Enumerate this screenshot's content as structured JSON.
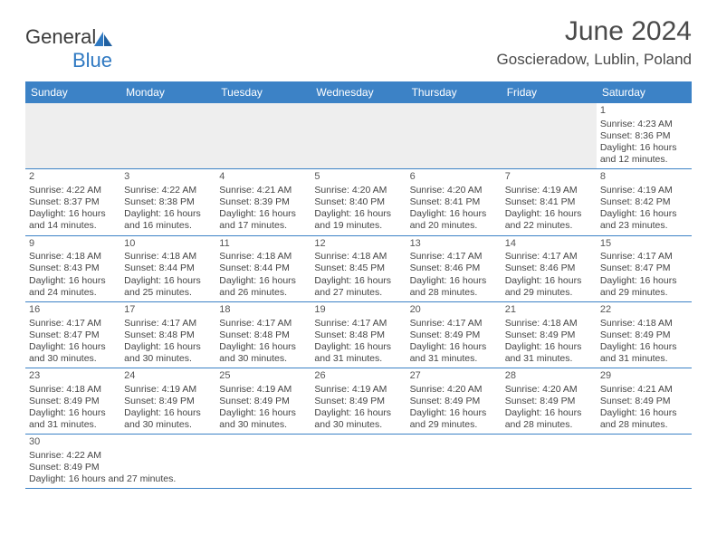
{
  "header": {
    "logo_text_1": "General",
    "logo_text_2": "Blue",
    "month_title": "June 2024",
    "location": "Goscieradow, Lublin, Poland"
  },
  "style": {
    "header_bg": "#3c82c6",
    "header_text": "#ffffff",
    "divider": "#3c82c6",
    "body_text": "#444444",
    "brand_gray": "#3b3b3b",
    "brand_blue": "#2f79c2",
    "empty_bg": "#eeeeee",
    "page_bg": "#ffffff",
    "title_fontsize": 30,
    "location_fontsize": 17,
    "dayheader_fontsize": 12,
    "cell_fontsize": 10.5
  },
  "calendar": {
    "day_headers": [
      "Sunday",
      "Monday",
      "Tuesday",
      "Wednesday",
      "Thursday",
      "Friday",
      "Saturday"
    ],
    "leading_blanks": 6,
    "days": [
      {
        "n": "1",
        "sunrise": "4:23 AM",
        "sunset": "8:36 PM",
        "daylight": "16 hours and 12 minutes."
      },
      {
        "n": "2",
        "sunrise": "4:22 AM",
        "sunset": "8:37 PM",
        "daylight": "16 hours and 14 minutes."
      },
      {
        "n": "3",
        "sunrise": "4:22 AM",
        "sunset": "8:38 PM",
        "daylight": "16 hours and 16 minutes."
      },
      {
        "n": "4",
        "sunrise": "4:21 AM",
        "sunset": "8:39 PM",
        "daylight": "16 hours and 17 minutes."
      },
      {
        "n": "5",
        "sunrise": "4:20 AM",
        "sunset": "8:40 PM",
        "daylight": "16 hours and 19 minutes."
      },
      {
        "n": "6",
        "sunrise": "4:20 AM",
        "sunset": "8:41 PM",
        "daylight": "16 hours and 20 minutes."
      },
      {
        "n": "7",
        "sunrise": "4:19 AM",
        "sunset": "8:41 PM",
        "daylight": "16 hours and 22 minutes."
      },
      {
        "n": "8",
        "sunrise": "4:19 AM",
        "sunset": "8:42 PM",
        "daylight": "16 hours and 23 minutes."
      },
      {
        "n": "9",
        "sunrise": "4:18 AM",
        "sunset": "8:43 PM",
        "daylight": "16 hours and 24 minutes."
      },
      {
        "n": "10",
        "sunrise": "4:18 AM",
        "sunset": "8:44 PM",
        "daylight": "16 hours and 25 minutes."
      },
      {
        "n": "11",
        "sunrise": "4:18 AM",
        "sunset": "8:44 PM",
        "daylight": "16 hours and 26 minutes."
      },
      {
        "n": "12",
        "sunrise": "4:18 AM",
        "sunset": "8:45 PM",
        "daylight": "16 hours and 27 minutes."
      },
      {
        "n": "13",
        "sunrise": "4:17 AM",
        "sunset": "8:46 PM",
        "daylight": "16 hours and 28 minutes."
      },
      {
        "n": "14",
        "sunrise": "4:17 AM",
        "sunset": "8:46 PM",
        "daylight": "16 hours and 29 minutes."
      },
      {
        "n": "15",
        "sunrise": "4:17 AM",
        "sunset": "8:47 PM",
        "daylight": "16 hours and 29 minutes."
      },
      {
        "n": "16",
        "sunrise": "4:17 AM",
        "sunset": "8:47 PM",
        "daylight": "16 hours and 30 minutes."
      },
      {
        "n": "17",
        "sunrise": "4:17 AM",
        "sunset": "8:48 PM",
        "daylight": "16 hours and 30 minutes."
      },
      {
        "n": "18",
        "sunrise": "4:17 AM",
        "sunset": "8:48 PM",
        "daylight": "16 hours and 30 minutes."
      },
      {
        "n": "19",
        "sunrise": "4:17 AM",
        "sunset": "8:48 PM",
        "daylight": "16 hours and 31 minutes."
      },
      {
        "n": "20",
        "sunrise": "4:17 AM",
        "sunset": "8:49 PM",
        "daylight": "16 hours and 31 minutes."
      },
      {
        "n": "21",
        "sunrise": "4:18 AM",
        "sunset": "8:49 PM",
        "daylight": "16 hours and 31 minutes."
      },
      {
        "n": "22",
        "sunrise": "4:18 AM",
        "sunset": "8:49 PM",
        "daylight": "16 hours and 31 minutes."
      },
      {
        "n": "23",
        "sunrise": "4:18 AM",
        "sunset": "8:49 PM",
        "daylight": "16 hours and 31 minutes."
      },
      {
        "n": "24",
        "sunrise": "4:19 AM",
        "sunset": "8:49 PM",
        "daylight": "16 hours and 30 minutes."
      },
      {
        "n": "25",
        "sunrise": "4:19 AM",
        "sunset": "8:49 PM",
        "daylight": "16 hours and 30 minutes."
      },
      {
        "n": "26",
        "sunrise": "4:19 AM",
        "sunset": "8:49 PM",
        "daylight": "16 hours and 30 minutes."
      },
      {
        "n": "27",
        "sunrise": "4:20 AM",
        "sunset": "8:49 PM",
        "daylight": "16 hours and 29 minutes."
      },
      {
        "n": "28",
        "sunrise": "4:20 AM",
        "sunset": "8:49 PM",
        "daylight": "16 hours and 28 minutes."
      },
      {
        "n": "29",
        "sunrise": "4:21 AM",
        "sunset": "8:49 PM",
        "daylight": "16 hours and 28 minutes."
      },
      {
        "n": "30",
        "sunrise": "4:22 AM",
        "sunset": "8:49 PM",
        "daylight": "16 hours and 27 minutes."
      }
    ],
    "labels": {
      "sunrise": "Sunrise:",
      "sunset": "Sunset:",
      "daylight": "Daylight:"
    }
  }
}
